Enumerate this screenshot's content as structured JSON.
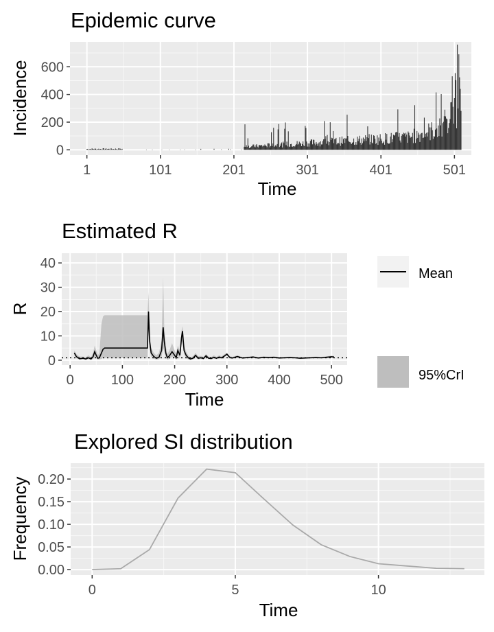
{
  "chart_data": [
    {
      "type": "bar",
      "title": "Epidemic curve",
      "xlabel": "Time",
      "ylabel": "Incidence",
      "x_ticks": [
        1,
        101,
        201,
        301,
        401,
        501
      ],
      "y_ticks": [
        0,
        200,
        400,
        600
      ],
      "xlim": [
        -22,
        524
      ],
      "ylim": [
        -38,
        780
      ],
      "bar_color": "#333333",
      "note": "daily incidence series, one bar per time step (1-510)"
    },
    {
      "type": "line",
      "title": "Estimated R",
      "xlabel": "Time",
      "ylabel": "R",
      "x_ticks": [
        0,
        100,
        200,
        300,
        400,
        500
      ],
      "y_ticks": [
        0,
        10,
        20,
        30,
        40
      ],
      "xlim": [
        -16,
        530
      ],
      "ylim": [
        -2,
        44
      ],
      "reference_line": 1,
      "series": [
        {
          "name": "Mean",
          "color": "#000000"
        },
        {
          "name": "95%CrI",
          "color": "#bebebe"
        }
      ],
      "mean_x": [
        8,
        12,
        18,
        25,
        30,
        35,
        40,
        44,
        47,
        50,
        53,
        56,
        60,
        63,
        66,
        68,
        72,
        80,
        100,
        120,
        140,
        148,
        150,
        152,
        155,
        160,
        165,
        170,
        175,
        178,
        180,
        183,
        186,
        190,
        195,
        200,
        203,
        206,
        210,
        213,
        215,
        218,
        222,
        226,
        230,
        235,
        240,
        245,
        250,
        255,
        260,
        265,
        270,
        275,
        280,
        285,
        290,
        295,
        300,
        305,
        310,
        320,
        330,
        340,
        350,
        360,
        370,
        380,
        390,
        400,
        410,
        420,
        430,
        440,
        450,
        460,
        470,
        480,
        490,
        500,
        505
      ],
      "mean_y": [
        3,
        1.5,
        0.6,
        0.8,
        0.5,
        1,
        0.5,
        1.5,
        3.5,
        2,
        0.8,
        1,
        3,
        4.5,
        5,
        5,
        5,
        5,
        5,
        5,
        5,
        5,
        20,
        8,
        3,
        1.5,
        0.8,
        1.2,
        4,
        13.5,
        8,
        3,
        1,
        1.8,
        3.5,
        2,
        1,
        4,
        2,
        9,
        12,
        4,
        2,
        1,
        0.5,
        0.8,
        2,
        0.8,
        1,
        0.7,
        1.8,
        0.8,
        0.7,
        1.2,
        0.8,
        1.3,
        1,
        1.7,
        2.5,
        1.2,
        0.9,
        1.5,
        0.9,
        1.1,
        1.3,
        0.9,
        1.2,
        1.1,
        1.2,
        0.9,
        1,
        1.1,
        1,
        0.8,
        0.9,
        1,
        1.1,
        1,
        1.2,
        1.4,
        1.3
      ],
      "crl_upper_y": [
        4,
        2.5,
        1.5,
        1.5,
        1.2,
        2,
        1.2,
        3,
        6,
        4,
        2,
        3,
        15,
        18,
        18.5,
        18.5,
        18.5,
        18.5,
        18.5,
        18.5,
        18.5,
        18.5,
        28,
        12,
        5,
        3,
        2,
        3,
        8,
        34,
        14,
        6,
        2.5,
        4,
        7,
        4,
        2.5,
        6,
        4,
        12,
        14,
        6,
        3.5,
        2,
        1.2,
        1.6,
        3,
        1.6,
        1.8,
        1.4,
        2.5,
        1.5,
        1.3,
        2,
        1.4,
        2,
        1.6,
        2.4,
        3,
        1.8,
        1.4,
        2,
        1.3,
        1.5,
        1.7,
        1.3,
        1.6,
        1.5,
        1.6,
        1.3,
        1.4,
        1.5,
        1.4,
        1.2,
        1.3,
        1.4,
        1.5,
        1.4,
        1.6,
        1.8,
        1.7
      ],
      "crl_lower_y": [
        2,
        0.8,
        0.2,
        0.3,
        0.1,
        0.4,
        0.1,
        0.5,
        1.5,
        0.8,
        0.2,
        0.3,
        0.5,
        1,
        1,
        1,
        1,
        1,
        1,
        1,
        1,
        1,
        14,
        5,
        1.5,
        0.6,
        0.2,
        0.4,
        1.5,
        5,
        4,
        1,
        0.2,
        0.5,
        1.5,
        0.8,
        0.2,
        2,
        0.8,
        6,
        8,
        2.5,
        0.8,
        0.3,
        0.1,
        0.3,
        1.2,
        0.3,
        0.5,
        0.3,
        1.2,
        0.4,
        0.3,
        0.7,
        0.4,
        0.8,
        0.5,
        1.1,
        1.9,
        0.7,
        0.5,
        1,
        0.6,
        0.8,
        1,
        0.6,
        0.9,
        0.8,
        0.9,
        0.6,
        0.7,
        0.8,
        0.7,
        0.5,
        0.6,
        0.7,
        0.8,
        0.7,
        0.9,
        1.1,
        1
      ]
    },
    {
      "type": "line",
      "title": "Explored SI distribution",
      "xlabel": "Time",
      "ylabel": "Frequency",
      "x_ticks": [
        0,
        5,
        10
      ],
      "y_ticks": [
        "0.00",
        "0.05",
        "0.10",
        "0.15",
        "0.20"
      ],
      "xlim": [
        -0.75,
        13.7
      ],
      "ylim": [
        -0.012,
        0.235
      ],
      "line_color": "#a9a9a9",
      "x": [
        0,
        1,
        2,
        3,
        4,
        5,
        6,
        7,
        8,
        9,
        10,
        11,
        12,
        13
      ],
      "y": [
        0,
        0.002,
        0.044,
        0.158,
        0.222,
        0.214,
        0.156,
        0.099,
        0.055,
        0.029,
        0.013,
        0.008,
        0.003,
        0.002
      ]
    }
  ]
}
